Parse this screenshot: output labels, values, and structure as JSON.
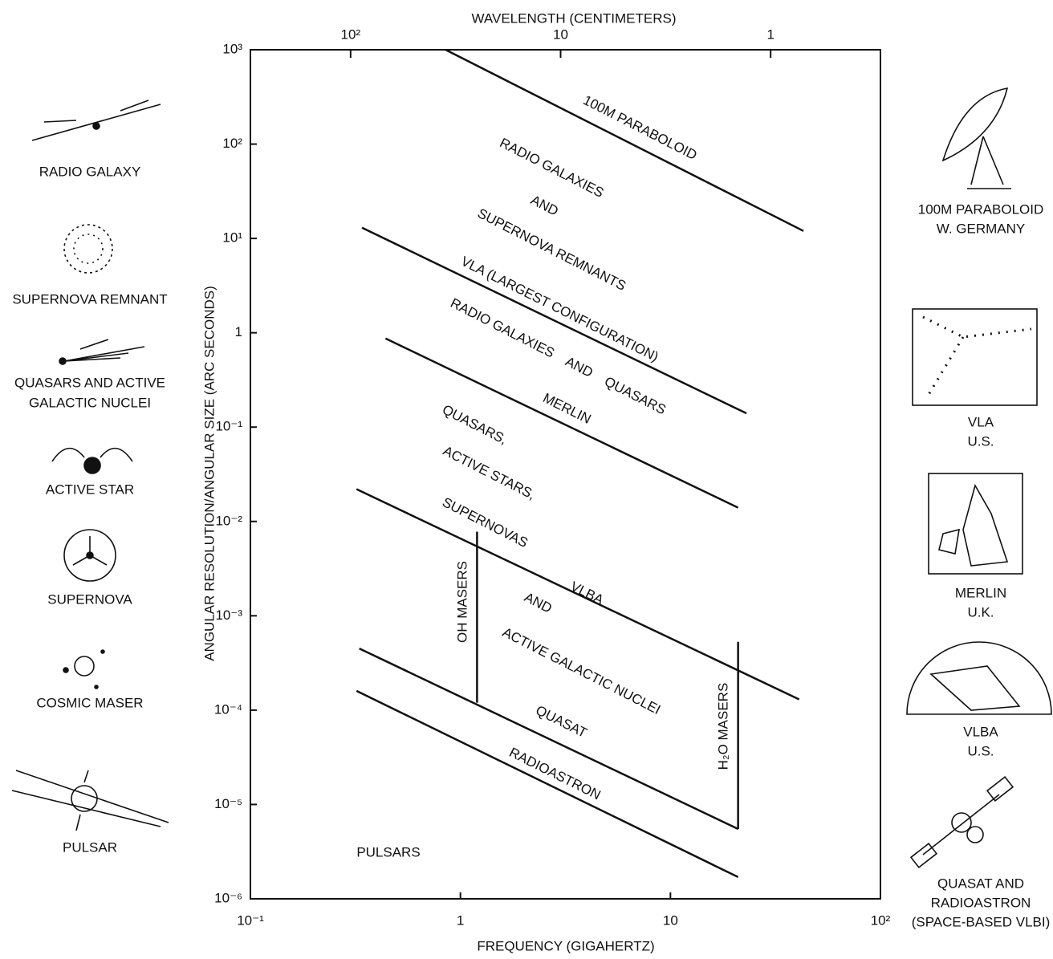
{
  "chart_data": {
    "type": "line",
    "xlabel": "FREQUENCY (GIGAHERTZ)",
    "x2label": "WAVELENGTH (CENTIMETERS)",
    "ylabel": "ANGULAR RESOLUTION/ANGULAR SIZE (ARC SECONDS)",
    "xscale": "log",
    "yscale": "log",
    "xlim": [
      0.1,
      100
    ],
    "xticks": [
      {
        "value": 0.1,
        "label": "10⁻¹"
      },
      1,
      10,
      {
        "value": 100,
        "label": "10²"
      }
    ],
    "x2lim": [
      300,
      0.3
    ],
    "x2ticks": [
      {
        "value": 100,
        "label": "10²"
      },
      10,
      1
    ],
    "ylim": [
      1e-06,
      1000
    ],
    "yticks": [
      {
        "value": 1000,
        "label": "10³"
      },
      {
        "value": 100,
        "label": "10²"
      },
      {
        "value": 10,
        "label": "10¹"
      },
      1,
      {
        "value": 0.1,
        "label": "10⁻¹"
      },
      {
        "value": 0.01,
        "label": "10⁻²"
      },
      {
        "value": 0.001,
        "label": "10⁻³"
      },
      {
        "value": 0.0001,
        "label": "10⁻⁴"
      },
      {
        "value": 1e-05,
        "label": "10⁻⁵"
      },
      {
        "value": 1e-06,
        "label": "10⁻⁶"
      }
    ],
    "grid": false,
    "color": "#111111",
    "series": [
      {
        "name": "100M PARABOLOID",
        "x": [
          0.85,
          43
        ],
        "values": [
          1000,
          12
        ]
      },
      {
        "name": "VLA (LARGEST CONFIGURATION)",
        "x": [
          0.34,
          23
        ],
        "values": [
          13,
          0.14
        ]
      },
      {
        "name": "MERLIN",
        "x": [
          0.44,
          21
        ],
        "values": [
          0.87,
          0.014
        ]
      },
      {
        "name": "VLBA",
        "x": [
          0.32,
          41
        ],
        "values": [
          0.022,
          0.00013
        ]
      },
      {
        "name": "QUASAT",
        "x": [
          0.33,
          21
        ],
        "values": [
          0.00045,
          5.5e-06
        ]
      },
      {
        "name": "RADIOASTRON",
        "x": [
          0.32,
          21
        ],
        "values": [
          0.00016,
          1.7e-06
        ]
      },
      {
        "name": "OH MASERS",
        "x": [
          1.2,
          1.2
        ],
        "values": [
          0.0078,
          0.00012
        ]
      },
      {
        "name": "H₂O MASERS",
        "x": [
          21,
          21
        ],
        "values": [
          0.00053,
          5.5e-06
        ]
      }
    ],
    "annotations": [
      "RADIO GALAXIES",
      "AND",
      "SUPERNOVA REMNANTS",
      "RADIO GALAXIES    AND    QUASARS",
      "QUASARS,",
      "ACTIVE STARS,",
      "SUPERNOVAS",
      "AND",
      "ACTIVE GALACTIC NUCLEI",
      "PULSARS"
    ]
  },
  "side_panels": {
    "left": [
      [
        "RADIO GALAXY"
      ],
      [
        "SUPERNOVA REMNANT"
      ],
      [
        "QUASARS AND ACTIVE",
        "GALACTIC NUCLEI"
      ],
      [
        "ACTIVE STAR"
      ],
      [
        "SUPERNOVA"
      ],
      [
        "COSMIC MASER"
      ],
      [
        "PULSAR"
      ]
    ],
    "right": [
      [
        "100M PARABOLOID",
        "W. GERMANY"
      ],
      [
        "VLA",
        "U.S."
      ],
      [
        "MERLIN",
        "U.K."
      ],
      [
        "VLBA",
        "U.S."
      ],
      [
        "QUASAT AND",
        "RADIOASTRON",
        "(SPACE-BASED VLBI)"
      ]
    ]
  }
}
